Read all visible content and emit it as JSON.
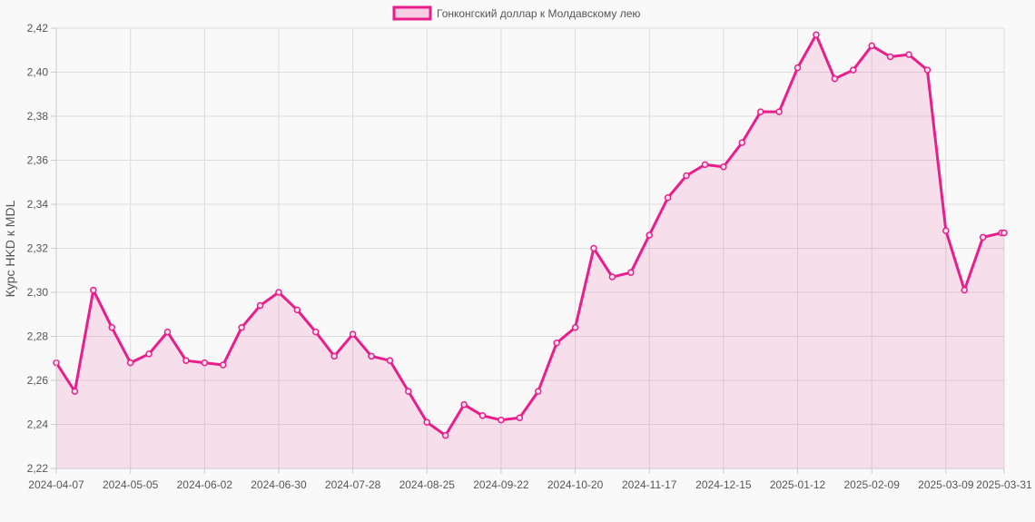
{
  "chart_data": {
    "type": "area",
    "title": "",
    "legend": {
      "label": "Гонконгский доллар к Молдавскому лею",
      "position": "top-center"
    },
    "ylabel": "Курс HKD к MDL",
    "xlabel": "",
    "ylim": [
      2.22,
      2.42
    ],
    "yticks": [
      "2,22",
      "2,24",
      "2,26",
      "2,28",
      "2,30",
      "2,32",
      "2,34",
      "2,36",
      "2,38",
      "2,40",
      "2,42"
    ],
    "xticks": [
      "2024-04-07",
      "2024-05-05",
      "2024-06-02",
      "2024-06-30",
      "2024-07-28",
      "2024-08-25",
      "2024-09-22",
      "2024-10-20",
      "2024-11-17",
      "2024-12-15",
      "2025-01-12",
      "2025-02-09",
      "2025-03-09",
      "2025-03-31"
    ],
    "grid": true,
    "colors": {
      "line": "#e91e8c",
      "fill": "rgba(233,30,140,0.12)"
    },
    "series": [
      {
        "name": "Гонконгский доллар к Молдавскому лею",
        "x": [
          "2024-04-07",
          "2024-04-14",
          "2024-04-21",
          "2024-04-28",
          "2024-05-05",
          "2024-05-12",
          "2024-05-19",
          "2024-05-26",
          "2024-06-02",
          "2024-06-09",
          "2024-06-16",
          "2024-06-23",
          "2024-06-30",
          "2024-07-07",
          "2024-07-14",
          "2024-07-21",
          "2024-07-28",
          "2024-08-04",
          "2024-08-11",
          "2024-08-18",
          "2024-08-25",
          "2024-09-01",
          "2024-09-08",
          "2024-09-15",
          "2024-09-22",
          "2024-09-29",
          "2024-10-06",
          "2024-10-13",
          "2024-10-20",
          "2024-10-27",
          "2024-11-03",
          "2024-11-10",
          "2024-11-17",
          "2024-11-24",
          "2024-12-01",
          "2024-12-08",
          "2024-12-15",
          "2024-12-22",
          "2024-12-29",
          "2025-01-05",
          "2025-01-12",
          "2025-01-19",
          "2025-01-26",
          "2025-02-02",
          "2025-02-09",
          "2025-02-16",
          "2025-02-23",
          "2025-03-02",
          "2025-03-09",
          "2025-03-16",
          "2025-03-23",
          "2025-03-30",
          "2025-03-31"
        ],
        "values": [
          2.268,
          2.255,
          2.301,
          2.284,
          2.268,
          2.272,
          2.282,
          2.269,
          2.268,
          2.267,
          2.284,
          2.294,
          2.3,
          2.292,
          2.282,
          2.271,
          2.281,
          2.271,
          2.269,
          2.255,
          2.241,
          2.235,
          2.249,
          2.244,
          2.242,
          2.243,
          2.255,
          2.277,
          2.284,
          2.32,
          2.307,
          2.309,
          2.326,
          2.343,
          2.353,
          2.358,
          2.357,
          2.368,
          2.382,
          2.382,
          2.402,
          2.417,
          2.397,
          2.401,
          2.412,
          2.407,
          2.408,
          2.401,
          2.328,
          2.301,
          2.325,
          2.327,
          2.327
        ]
      }
    ]
  }
}
